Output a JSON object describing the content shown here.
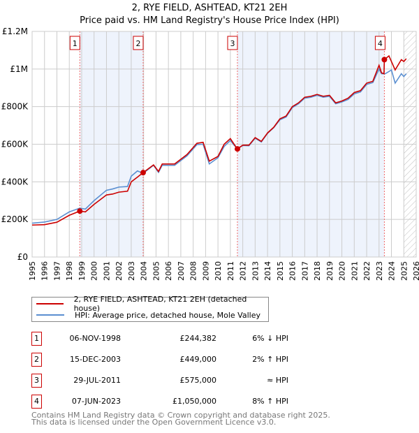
{
  "chart_data": {
    "type": "line",
    "title": "2, RYE FIELD, ASHTEAD, KT21 2EH",
    "subtitle": "Price paid vs. HM Land Registry's House Price Index (HPI)",
    "xlim": [
      1995,
      2026
    ],
    "ylim": [
      0,
      1200000
    ],
    "x_ticks": [
      "1995",
      "1996",
      "1997",
      "1998",
      "1999",
      "2000",
      "2001",
      "2002",
      "2003",
      "2004",
      "2005",
      "2006",
      "2007",
      "2008",
      "2009",
      "2010",
      "2011",
      "2012",
      "2013",
      "2014",
      "2015",
      "2016",
      "2017",
      "2018",
      "2019",
      "2020",
      "2021",
      "2022",
      "2023",
      "2024",
      "2025",
      "2026"
    ],
    "y_ticks": [
      {
        "v": 0,
        "label": "£0"
      },
      {
        "v": 200000,
        "label": "£200K"
      },
      {
        "v": 400000,
        "label": "£400K"
      },
      {
        "v": 600000,
        "label": "£600K"
      },
      {
        "v": 800000,
        "label": "£800K"
      },
      {
        "v": 1000000,
        "label": "£1M"
      },
      {
        "v": 1200000,
        "label": "£1.2M"
      }
    ],
    "grid": true,
    "forecast_from": 2025.0,
    "shaded_ranges": [
      [
        1998.85,
        2003.96
      ],
      [
        2011.57,
        2023.43
      ]
    ],
    "series": [
      {
        "name": "2, RYE FIELD, ASHTEAD, KT21 2EH (detached house)",
        "color": "#cc0000",
        "points": [
          [
            1995,
            170000
          ],
          [
            1996,
            172000
          ],
          [
            1997,
            185000
          ],
          [
            1998,
            222000
          ],
          [
            1998.85,
            244382
          ],
          [
            1999.3,
            240000
          ],
          [
            2000,
            280000
          ],
          [
            2001,
            330000
          ],
          [
            2001.5,
            335000
          ],
          [
            2002,
            345000
          ],
          [
            2002.7,
            350000
          ],
          [
            2003,
            400000
          ],
          [
            2003.5,
            425000
          ],
          [
            2003.96,
            449000
          ],
          [
            2004.8,
            490000
          ],
          [
            2005.2,
            455000
          ],
          [
            2005.5,
            495000
          ],
          [
            2006.5,
            495000
          ],
          [
            2007.5,
            545000
          ],
          [
            2008.3,
            605000
          ],
          [
            2008.8,
            610000
          ],
          [
            2009.3,
            510000
          ],
          [
            2010,
            535000
          ],
          [
            2010.5,
            600000
          ],
          [
            2011,
            630000
          ],
          [
            2011.3,
            600000
          ],
          [
            2011.57,
            575000
          ],
          [
            2012,
            595000
          ],
          [
            2012.5,
            595000
          ],
          [
            2013,
            635000
          ],
          [
            2013.5,
            615000
          ],
          [
            2014,
            660000
          ],
          [
            2014.5,
            690000
          ],
          [
            2015,
            735000
          ],
          [
            2015.5,
            750000
          ],
          [
            2016,
            800000
          ],
          [
            2016.5,
            820000
          ],
          [
            2017,
            850000
          ],
          [
            2017.5,
            855000
          ],
          [
            2018,
            865000
          ],
          [
            2018.5,
            855000
          ],
          [
            2019,
            860000
          ],
          [
            2019.5,
            820000
          ],
          [
            2020,
            830000
          ],
          [
            2020.5,
            845000
          ],
          [
            2021,
            875000
          ],
          [
            2021.5,
            885000
          ],
          [
            2022,
            925000
          ],
          [
            2022.5,
            935000
          ],
          [
            2023,
            1020000
          ],
          [
            2023.2,
            980000
          ],
          [
            2023.4,
            975000
          ],
          [
            2023.43,
            1050000
          ],
          [
            2023.8,
            1070000
          ],
          [
            2024.3,
            995000
          ],
          [
            2024.8,
            1050000
          ],
          [
            2025,
            1040000
          ],
          [
            2025.2,
            1055000
          ]
        ]
      },
      {
        "name": "HPI: Average price, detached house, Mole Valley",
        "color": "#5b8fd1",
        "points": [
          [
            1995,
            180000
          ],
          [
            1996,
            186000
          ],
          [
            1997,
            200000
          ],
          [
            1998,
            240000
          ],
          [
            1998.85,
            260000
          ],
          [
            1999.3,
            255000
          ],
          [
            2000,
            300000
          ],
          [
            2001,
            355000
          ],
          [
            2001.5,
            362000
          ],
          [
            2002,
            372000
          ],
          [
            2002.7,
            375000
          ],
          [
            2003,
            430000
          ],
          [
            2003.5,
            458000
          ],
          [
            2003.96,
            445000
          ],
          [
            2004.8,
            488000
          ],
          [
            2005.2,
            450000
          ],
          [
            2005.5,
            488000
          ],
          [
            2006.5,
            488000
          ],
          [
            2007.5,
            538000
          ],
          [
            2008.3,
            598000
          ],
          [
            2008.8,
            600000
          ],
          [
            2009.3,
            495000
          ],
          [
            2010,
            528000
          ],
          [
            2010.5,
            588000
          ],
          [
            2011,
            620000
          ],
          [
            2011.3,
            595000
          ],
          [
            2011.57,
            577000
          ],
          [
            2012,
            593000
          ],
          [
            2012.5,
            592000
          ],
          [
            2013,
            632000
          ],
          [
            2013.5,
            612000
          ],
          [
            2014,
            658000
          ],
          [
            2014.5,
            688000
          ],
          [
            2015,
            730000
          ],
          [
            2015.5,
            745000
          ],
          [
            2016,
            795000
          ],
          [
            2016.5,
            815000
          ],
          [
            2017,
            845000
          ],
          [
            2017.5,
            850000
          ],
          [
            2018,
            860000
          ],
          [
            2018.5,
            850000
          ],
          [
            2019,
            855000
          ],
          [
            2019.5,
            815000
          ],
          [
            2020,
            825000
          ],
          [
            2020.5,
            838000
          ],
          [
            2021,
            868000
          ],
          [
            2021.5,
            878000
          ],
          [
            2022,
            918000
          ],
          [
            2022.5,
            928000
          ],
          [
            2023,
            1000000
          ],
          [
            2023.2,
            975000
          ],
          [
            2023.5,
            975000
          ],
          [
            2024,
            995000
          ],
          [
            2024.3,
            925000
          ],
          [
            2024.8,
            975000
          ],
          [
            2025,
            960000
          ],
          [
            2025.2,
            975000
          ]
        ]
      }
    ],
    "sales": [
      {
        "n": "1",
        "x": 1998.85,
        "y": 244382,
        "date": "06-NOV-1998",
        "price": "£244,382",
        "hpi": "6% ↓ HPI"
      },
      {
        "n": "2",
        "x": 2003.96,
        "y": 449000,
        "date": "15-DEC-2003",
        "price": "£449,000",
        "hpi": "2% ↑ HPI"
      },
      {
        "n": "3",
        "x": 2011.57,
        "y": 575000,
        "date": "29-JUL-2011",
        "price": "£575,000",
        "hpi": "≈ HPI"
      },
      {
        "n": "4",
        "x": 2023.43,
        "y": 1050000,
        "date": "07-JUN-2023",
        "price": "£1,050,000",
        "hpi": "8% ↑ HPI"
      }
    ]
  },
  "legend": {
    "red": "2, RYE FIELD, ASHTEAD, KT21 2EH (detached house)",
    "blue": "HPI: Average price, detached house, Mole Valley"
  },
  "footer": {
    "line1": "Contains HM Land Registry data © Crown copyright and database right 2025.",
    "line2": "This data is licensed under the Open Government Licence v3.0."
  }
}
